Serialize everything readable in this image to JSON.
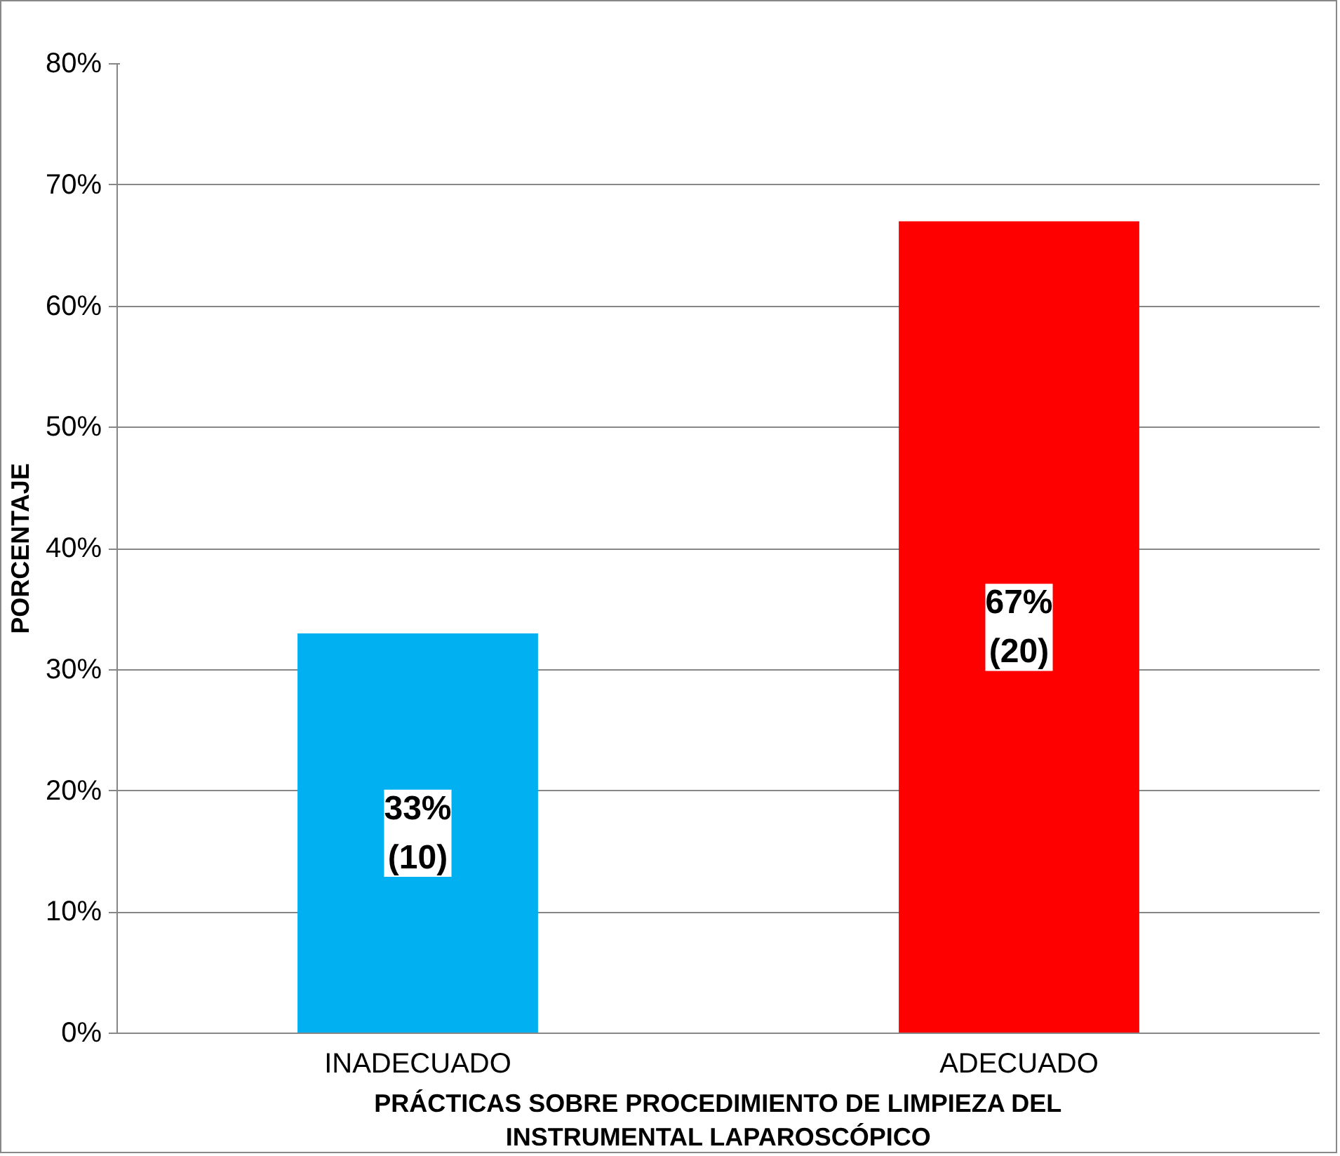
{
  "chart_data": {
    "type": "bar",
    "xlabel": "PRÁCTICAS SOBRE PROCEDIMIENTO DE LIMPIEZA DEL\nINSTRUMENTAL LAPAROSCÓPICO",
    "ylabel": "PORCENTAJE",
    "categories": [
      "INADECUADO",
      "ADECUADO"
    ],
    "values": [
      33,
      67
    ],
    "colors": [
      "#00b0f0",
      "#ff0000"
    ],
    "value_labels": [
      "33%\n(10)",
      "67%\n(20)"
    ],
    "ylim": [
      0,
      80
    ],
    "yticks": [
      {
        "value": 0,
        "label": "0%"
      },
      {
        "value": 10,
        "label": "10%"
      },
      {
        "value": 20,
        "label": "20%"
      },
      {
        "value": 30,
        "label": "30%"
      },
      {
        "value": 40,
        "label": "40%"
      },
      {
        "value": 50,
        "label": "50%"
      },
      {
        "value": 60,
        "label": "60%"
      },
      {
        "value": 70,
        "label": "70%"
      },
      {
        "value": 80,
        "label": "80%"
      }
    ],
    "grid": "y"
  }
}
